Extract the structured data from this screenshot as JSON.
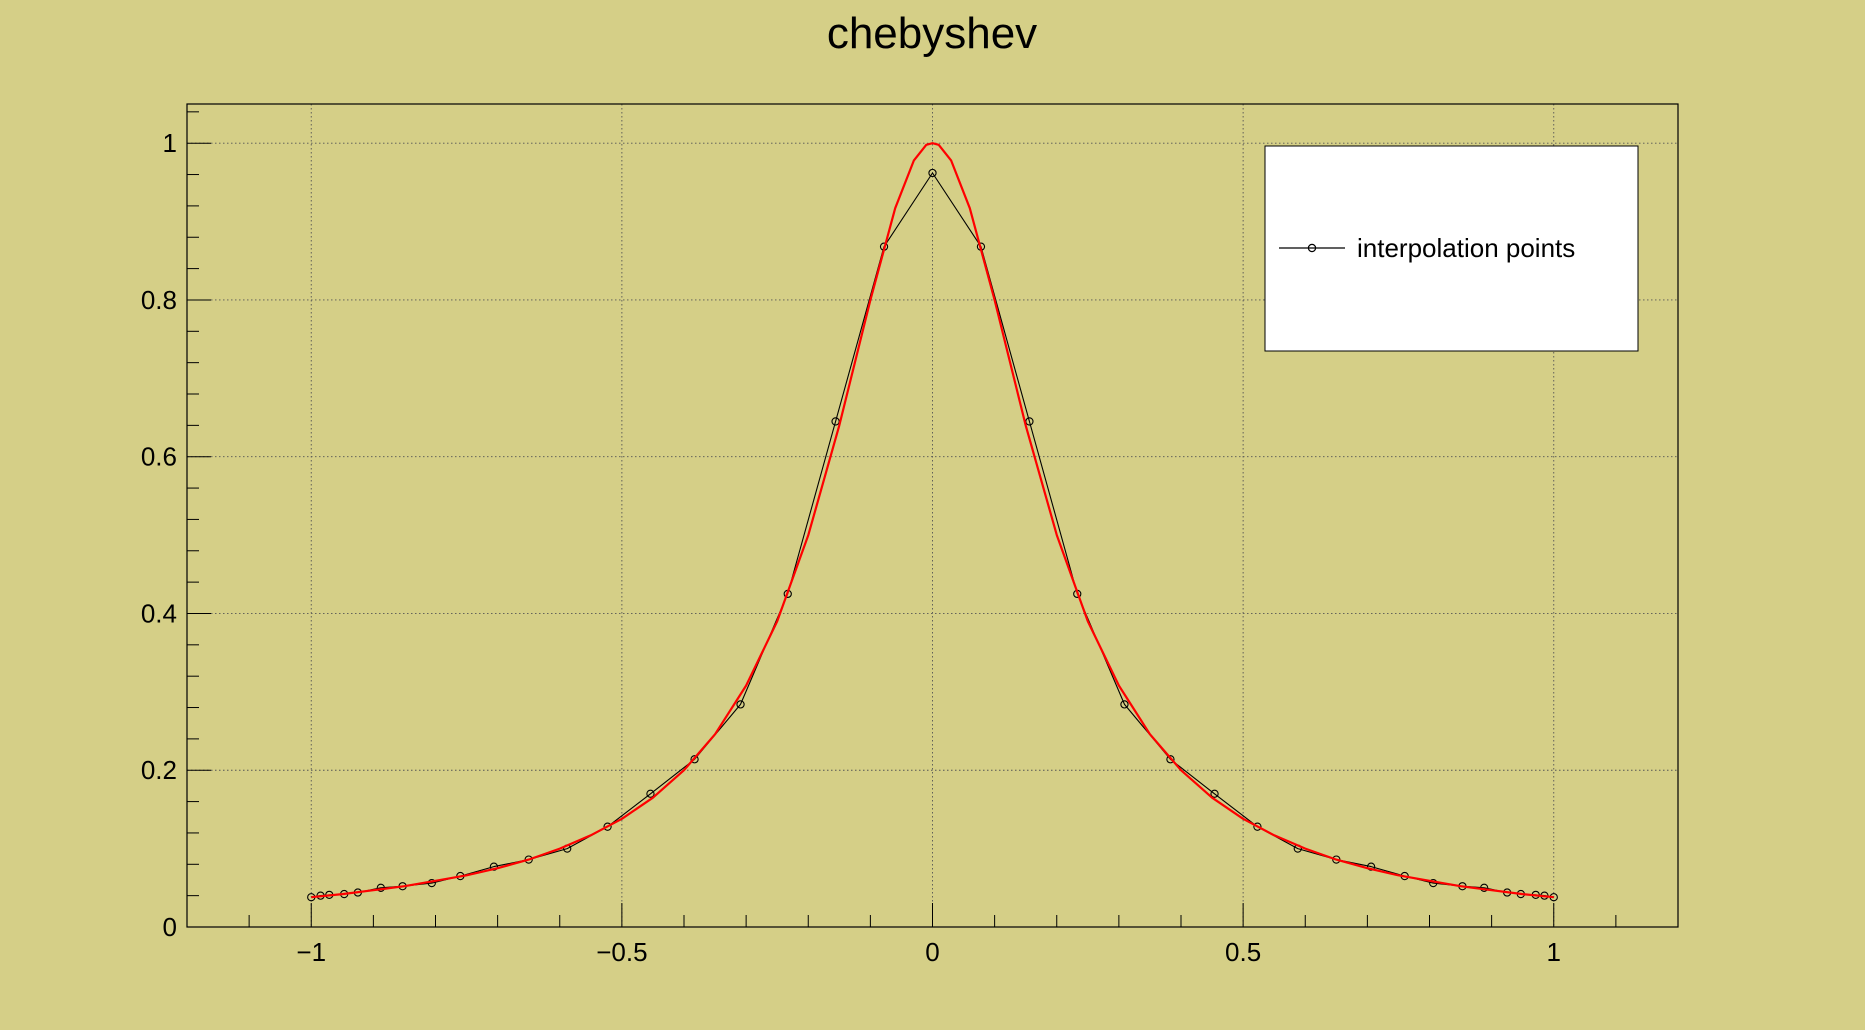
{
  "chart_data": {
    "type": "line",
    "title": "chebyshev",
    "xlabel": "",
    "ylabel": "",
    "xlim": [
      -1.2,
      1.2
    ],
    "ylim": [
      0,
      1.05
    ],
    "grid": true,
    "legend_position": "top-right",
    "x_ticks": [
      {
        "value": -1,
        "label": "−1"
      },
      {
        "value": -0.5,
        "label": "−0.5"
      },
      {
        "value": 0,
        "label": "0"
      },
      {
        "value": 0.5,
        "label": "0.5"
      },
      {
        "value": 1,
        "label": "1"
      }
    ],
    "y_ticks": [
      {
        "value": 0,
        "label": "0"
      },
      {
        "value": 0.2,
        "label": "0.2"
      },
      {
        "value": 0.4,
        "label": "0.4"
      },
      {
        "value": 0.6,
        "label": "0.6"
      },
      {
        "value": 0.8,
        "label": "0.8"
      },
      {
        "value": 1,
        "label": "1"
      }
    ],
    "series": [
      {
        "name": "interpolation points",
        "color": "#000000",
        "marker": "open-circle",
        "points": [
          [
            -1.0,
            0.038
          ],
          [
            -0.985,
            0.04
          ],
          [
            -0.971,
            0.041
          ],
          [
            -0.947,
            0.042
          ],
          [
            -0.925,
            0.044
          ],
          [
            -0.888,
            0.05
          ],
          [
            -0.853,
            0.052
          ],
          [
            -0.806,
            0.056
          ],
          [
            -0.76,
            0.065
          ],
          [
            -0.706,
            0.077
          ],
          [
            -0.65,
            0.086
          ],
          [
            -0.588,
            0.1
          ],
          [
            -0.523,
            0.128
          ],
          [
            -0.454,
            0.17
          ],
          [
            -0.383,
            0.214
          ],
          [
            -0.309,
            0.284
          ],
          [
            -0.233,
            0.425
          ],
          [
            -0.156,
            0.645
          ],
          [
            -0.078,
            0.868
          ],
          [
            0.0,
            0.962
          ],
          [
            0.078,
            0.868
          ],
          [
            0.156,
            0.645
          ],
          [
            0.233,
            0.425
          ],
          [
            0.309,
            0.284
          ],
          [
            0.383,
            0.214
          ],
          [
            0.454,
            0.17
          ],
          [
            0.523,
            0.128
          ],
          [
            0.588,
            0.1
          ],
          [
            0.65,
            0.086
          ],
          [
            0.706,
            0.077
          ],
          [
            0.76,
            0.065
          ],
          [
            0.806,
            0.056
          ],
          [
            0.853,
            0.052
          ],
          [
            0.888,
            0.05
          ],
          [
            0.925,
            0.044
          ],
          [
            0.947,
            0.042
          ],
          [
            0.971,
            0.041
          ],
          [
            0.985,
            0.04
          ],
          [
            1.0,
            0.038
          ]
        ]
      },
      {
        "name": "",
        "color": "#ff0000",
        "marker": "none",
        "points": [
          [
            -1.0,
            0.038
          ],
          [
            -0.95,
            0.042
          ],
          [
            -0.9,
            0.047
          ],
          [
            -0.85,
            0.052
          ],
          [
            -0.8,
            0.059
          ],
          [
            -0.75,
            0.066
          ],
          [
            -0.7,
            0.075
          ],
          [
            -0.65,
            0.086
          ],
          [
            -0.6,
            0.1
          ],
          [
            -0.55,
            0.117
          ],
          [
            -0.5,
            0.138
          ],
          [
            -0.45,
            0.165
          ],
          [
            -0.4,
            0.2
          ],
          [
            -0.35,
            0.246
          ],
          [
            -0.3,
            0.308
          ],
          [
            -0.25,
            0.39
          ],
          [
            -0.2,
            0.5
          ],
          [
            -0.15,
            0.64
          ],
          [
            -0.1,
            0.8
          ],
          [
            -0.06,
            0.917
          ],
          [
            -0.03,
            0.978
          ],
          [
            -0.01,
            0.998
          ],
          [
            0.0,
            1.0
          ],
          [
            0.01,
            0.998
          ],
          [
            0.03,
            0.978
          ],
          [
            0.06,
            0.917
          ],
          [
            0.1,
            0.8
          ],
          [
            0.15,
            0.64
          ],
          [
            0.2,
            0.5
          ],
          [
            0.25,
            0.39
          ],
          [
            0.3,
            0.308
          ],
          [
            0.35,
            0.246
          ],
          [
            0.4,
            0.2
          ],
          [
            0.45,
            0.165
          ],
          [
            0.5,
            0.138
          ],
          [
            0.55,
            0.117
          ],
          [
            0.6,
            0.1
          ],
          [
            0.65,
            0.086
          ],
          [
            0.7,
            0.075
          ],
          [
            0.75,
            0.066
          ],
          [
            0.8,
            0.059
          ],
          [
            0.85,
            0.052
          ],
          [
            0.9,
            0.047
          ],
          [
            0.95,
            0.042
          ],
          [
            1.0,
            0.038
          ]
        ]
      }
    ],
    "colors": {
      "background": "#d5cf87",
      "frame": "#000000",
      "grid": "#555555",
      "legend_background": "#ffffff"
    }
  }
}
